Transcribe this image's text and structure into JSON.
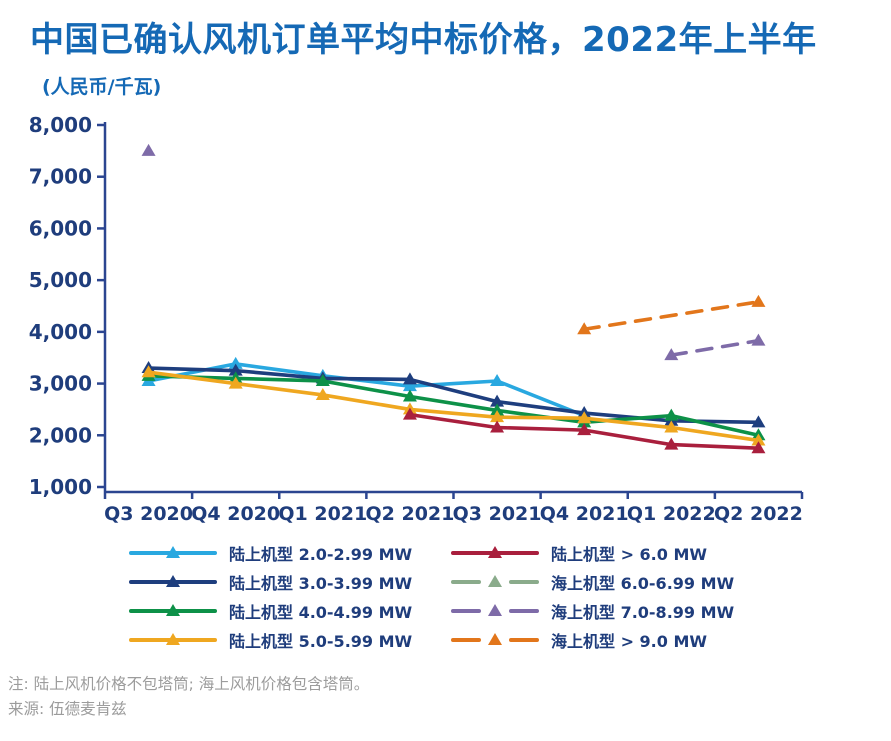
{
  "header": {
    "title": "中国已确认风机订单平均中标价格，2022年上半年",
    "subtitle": "(人民币/千瓦)"
  },
  "notes": {
    "note": "注: 陆上风机价格不包塔筒; 海上风机价格包含塔筒。",
    "source": "来源: 伍德麦肯兹"
  },
  "colors": {
    "title_blue": "#1569B5",
    "axis_text": "#1F3D7C",
    "axis_line": "#2B4590",
    "note_gray": "#9C9C9C"
  },
  "chart_data": {
    "type": "line",
    "title": "中国已确认风机订单平均中标价格，2022年上半年",
    "xlabel": "",
    "ylabel": "人民币/千瓦",
    "categories": [
      "Q3 2020",
      "Q4 2020",
      "Q1 2021",
      "Q2 2021",
      "Q3 2021",
      "Q4 2021",
      "Q1 2022",
      "Q2 2022"
    ],
    "ylim": [
      1000,
      8000
    ],
    "ytick_interval": 1000,
    "ytick_labels": [
      "1,000",
      "2,000",
      "3,000",
      "4,000",
      "5,000",
      "6,000",
      "7,000",
      "8,000"
    ],
    "grid": false,
    "legend_position": "bottom",
    "marker": "triangle",
    "series": [
      {
        "name": "陆上机型 2.0-2.99 MW",
        "color": "#29A8E0",
        "style": "solid",
        "values": [
          3050,
          3380,
          3150,
          2950,
          3050,
          2380,
          null,
          null
        ]
      },
      {
        "name": "陆上机型 3.0-3.99 MW",
        "color": "#1E3E7E",
        "style": "solid",
        "values": [
          3300,
          3250,
          3100,
          3080,
          2650,
          2430,
          2280,
          2250
        ]
      },
      {
        "name": "陆上机型 4.0-4.99 MW",
        "color": "#0D9148",
        "style": "solid",
        "values": [
          3150,
          3100,
          3050,
          2750,
          2480,
          2250,
          2380,
          2000
        ]
      },
      {
        "name": "陆上机型 5.0-5.99 MW",
        "color": "#EFA720",
        "style": "solid",
        "values": [
          3220,
          3000,
          2780,
          2500,
          2350,
          2330,
          2150,
          1900
        ]
      },
      {
        "name": "陆上机型 > 6.0 MW",
        "color": "#A91F3D",
        "style": "solid",
        "values": [
          null,
          null,
          null,
          2400,
          2150,
          2100,
          1820,
          1750
        ]
      },
      {
        "name": "海上机型 6.0-6.99 MW",
        "color": "#8AAB8B",
        "style": "dashed",
        "values": [
          null,
          null,
          null,
          null,
          null,
          null,
          null,
          null
        ]
      },
      {
        "name": "海上机型 7.0-8.99 MW",
        "color": "#7E6BA8",
        "style": "dashed",
        "values": [
          7500,
          null,
          null,
          null,
          null,
          null,
          3550,
          3830
        ]
      },
      {
        "name": "海上机型 > 9.0 MW",
        "color": "#E2761B",
        "style": "dashed",
        "values": [
          null,
          null,
          null,
          null,
          null,
          4050,
          null,
          4580
        ]
      }
    ]
  }
}
